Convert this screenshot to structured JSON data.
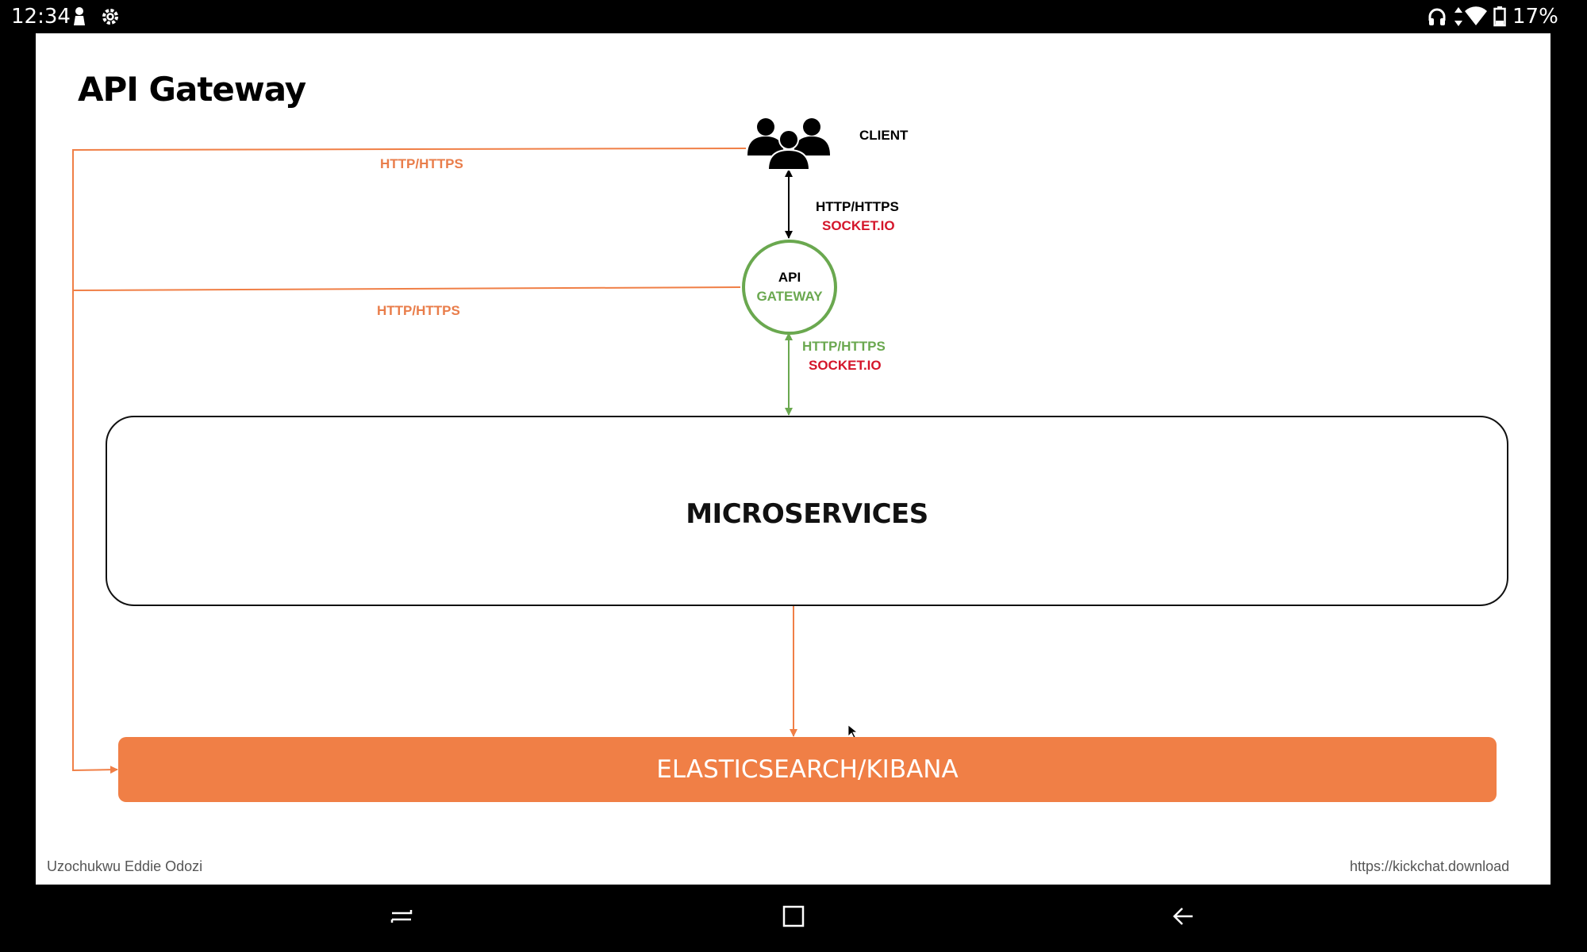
{
  "status_bar": {
    "time": "12:34",
    "battery": "17%",
    "icons": [
      "notification-person-icon",
      "settings-gear-icon",
      "headphones-icon",
      "data-arrows-icon",
      "wifi-icon",
      "battery-icon"
    ]
  },
  "slide": {
    "title": "API Gateway",
    "client_label": "CLIENT",
    "client_protocol": "HTTP/HTTPS",
    "client_socket": "SOCKET.IO",
    "gateway_line1": "API",
    "gateway_line2": "GATEWAY",
    "gateway_protocol": "HTTP/HTTPS",
    "gateway_socket": "SOCKET.IO",
    "top_link_label": "HTTP/HTTPS",
    "mid_link_label": "HTTP/HTTPS",
    "microservices": "MICROSERVICES",
    "elastic": "ELASTICSEARCH/KIBANA",
    "author": "Uzochukwu Eddie Odozi",
    "url": "https://kickchat.download"
  },
  "colors": {
    "orange": "#f07f46",
    "green": "#6aa84f",
    "red": "#d4152a"
  },
  "nav_bar": {
    "buttons": [
      "recents-button",
      "home-button",
      "back-button"
    ]
  }
}
